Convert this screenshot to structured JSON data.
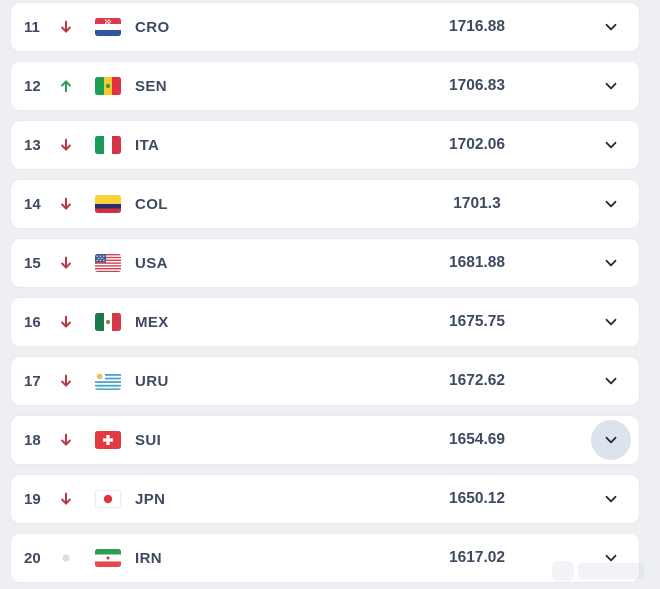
{
  "list": {
    "rows": [
      {
        "rank": "11",
        "movement": "down",
        "flag": "cro",
        "code": "CRO",
        "points": "1716.88",
        "active": false
      },
      {
        "rank": "12",
        "movement": "up",
        "flag": "sen",
        "code": "SEN",
        "points": "1706.83",
        "active": false
      },
      {
        "rank": "13",
        "movement": "down",
        "flag": "ita",
        "code": "ITA",
        "points": "1702.06",
        "active": false
      },
      {
        "rank": "14",
        "movement": "down",
        "flag": "col",
        "code": "COL",
        "points": "1701.3",
        "active": false
      },
      {
        "rank": "15",
        "movement": "down",
        "flag": "usa",
        "code": "USA",
        "points": "1681.88",
        "active": false
      },
      {
        "rank": "16",
        "movement": "down",
        "flag": "mex",
        "code": "MEX",
        "points": "1675.75",
        "active": false
      },
      {
        "rank": "17",
        "movement": "down",
        "flag": "uru",
        "code": "URU",
        "points": "1672.62",
        "active": false
      },
      {
        "rank": "18",
        "movement": "down",
        "flag": "sui",
        "code": "SUI",
        "points": "1654.69",
        "active": true
      },
      {
        "rank": "19",
        "movement": "down",
        "flag": "jpn",
        "code": "JPN",
        "points": "1650.12",
        "active": false
      },
      {
        "rank": "20",
        "movement": "same",
        "flag": "irn",
        "code": "IRN",
        "points": "1617.02",
        "active": false
      }
    ]
  },
  "colors": {
    "movement_up": "#2f9e5c",
    "movement_down": "#b43b4c",
    "movement_same": "#d9dce1",
    "chevron": "#1d2a3e",
    "active_chevron_bg": "#dce3ee",
    "text": "#3d4a61",
    "card_bg": "#ffffff",
    "page_bg": "#edeff3"
  }
}
